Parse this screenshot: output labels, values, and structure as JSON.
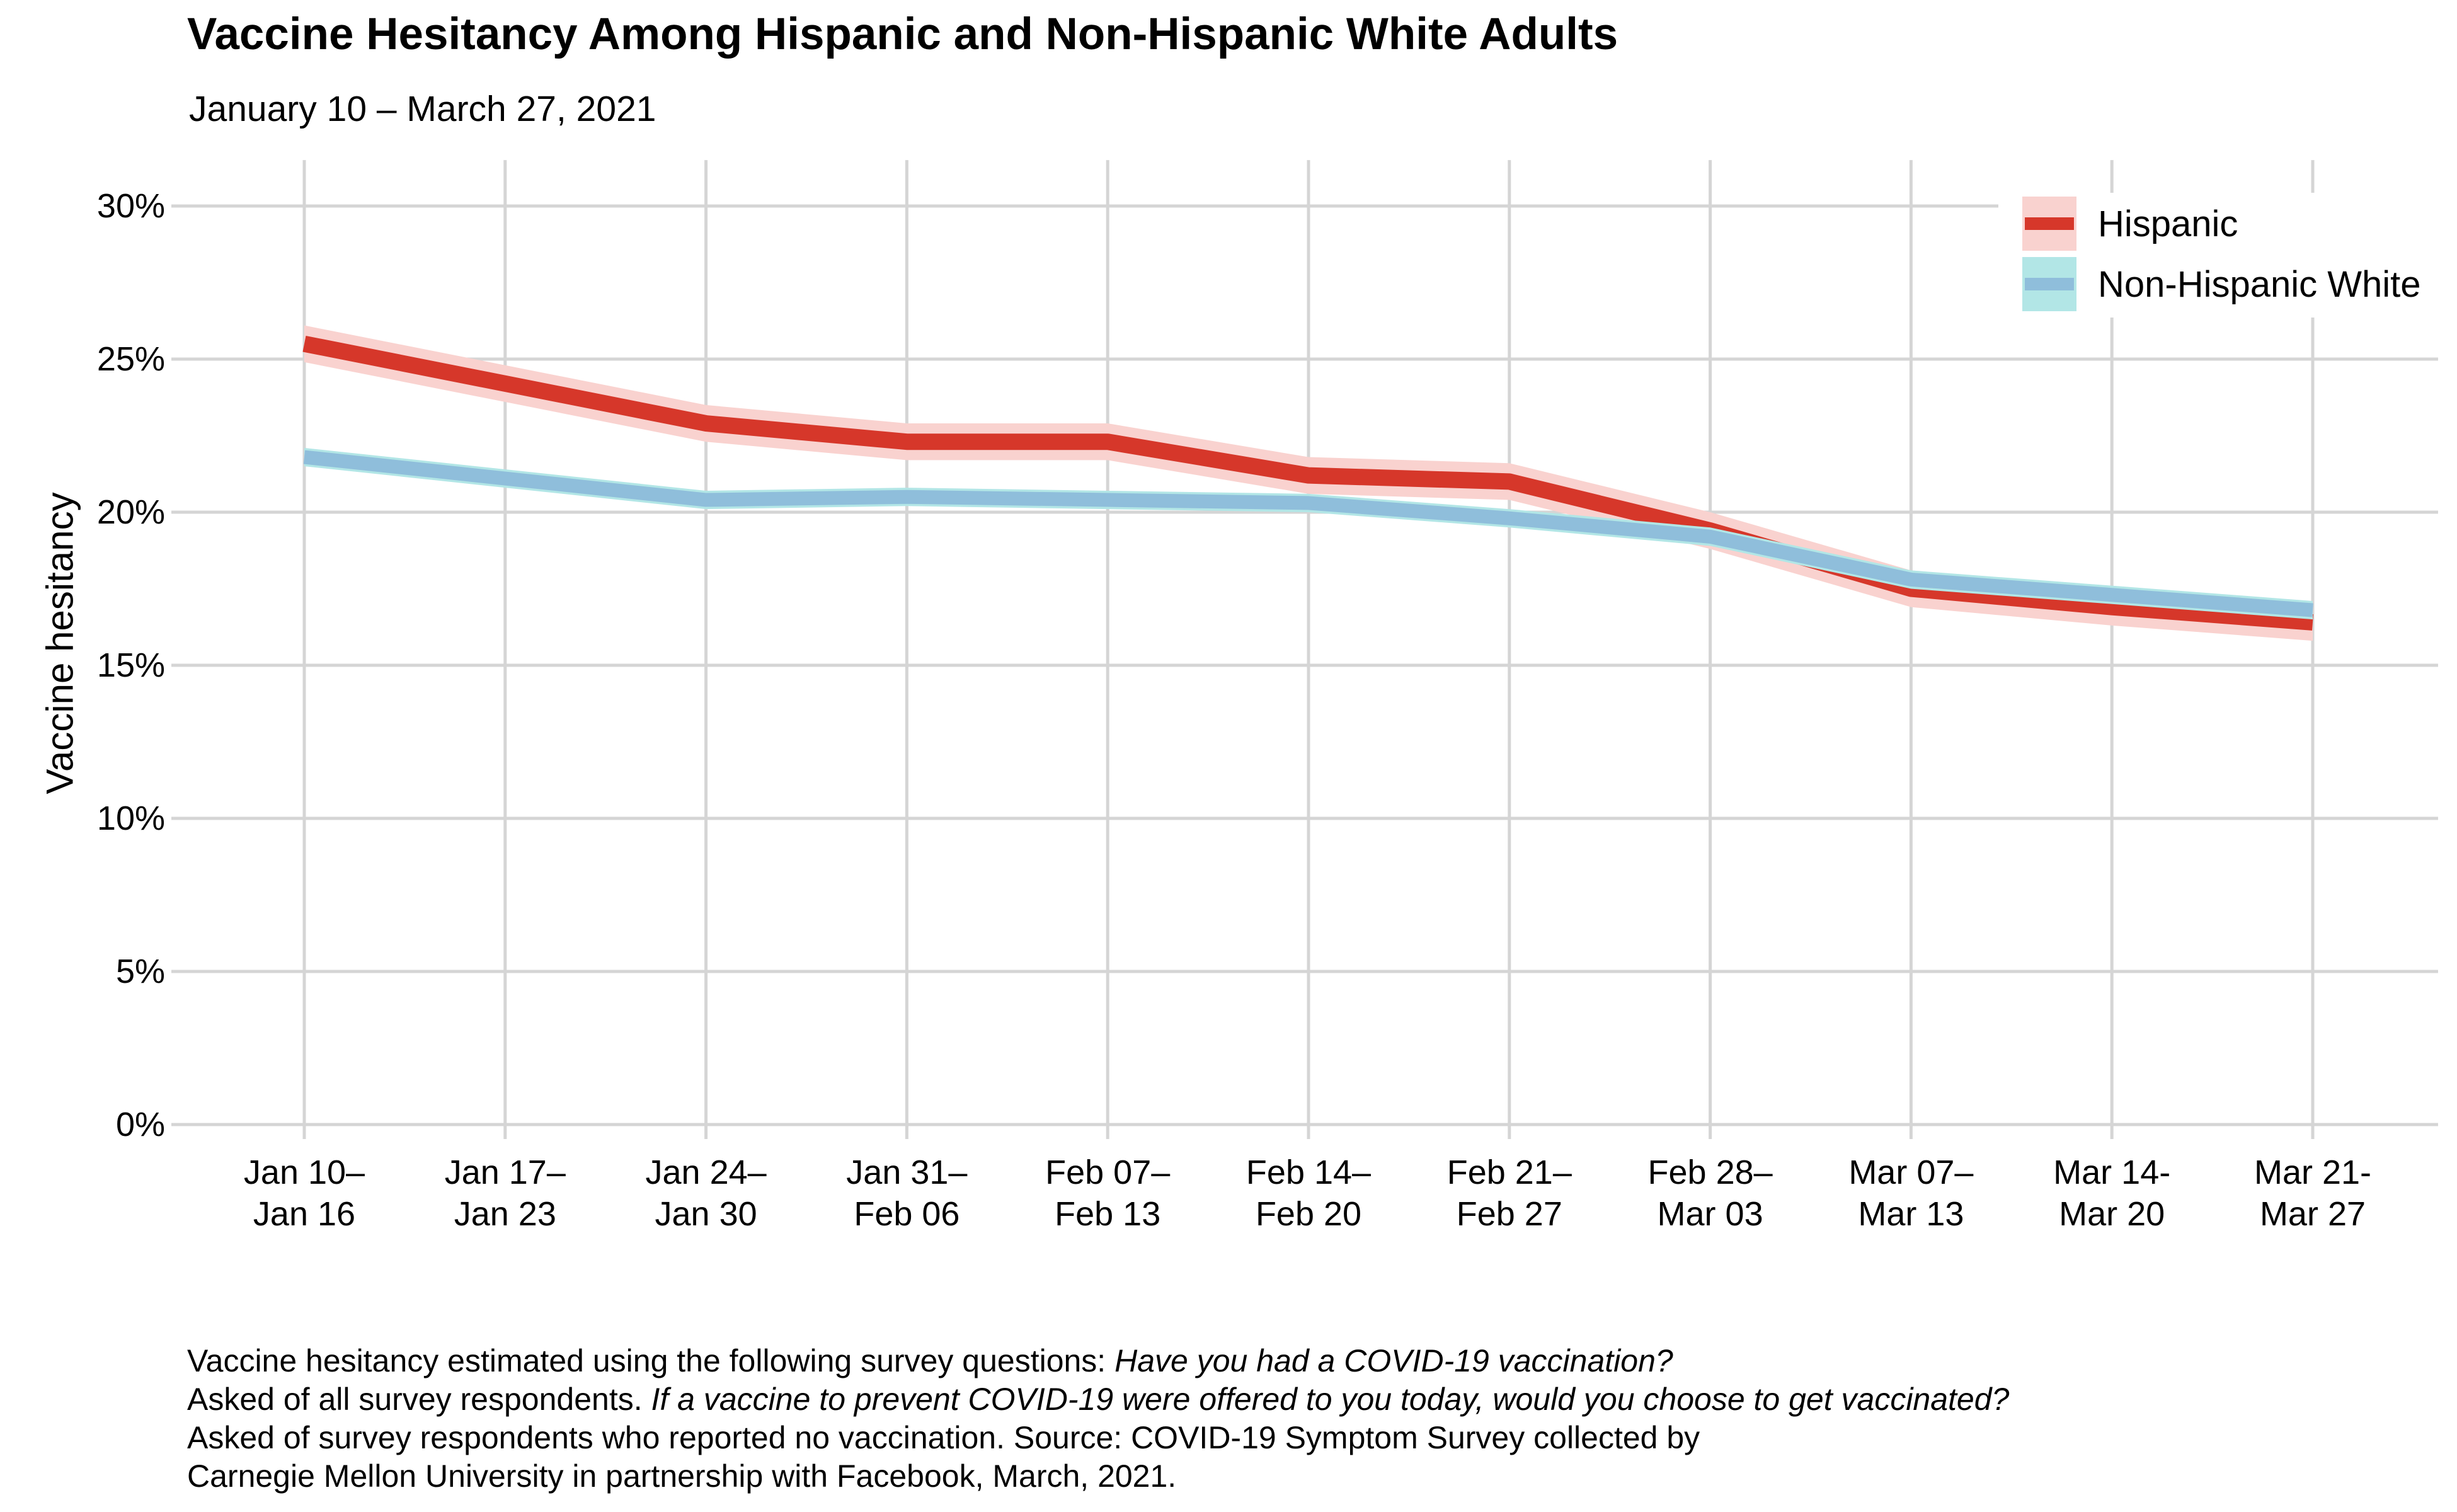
{
  "chart_data": {
    "type": "line",
    "title": "Vaccine Hesitancy Among Hispanic and Non-Hispanic White Adults",
    "subtitle": "January 10 – March 27, 2021",
    "xlabel": "",
    "ylabel": "Vaccine hesitancy",
    "ylim": [
      0,
      31.5
    ],
    "grid": true,
    "legend_position": "top-right-inside",
    "y_ticks_pct": [
      0,
      5,
      10,
      15,
      20,
      25,
      30
    ],
    "y_tick_labels": [
      "0%",
      "5%",
      "10%",
      "15%",
      "20%",
      "25%",
      "30%"
    ],
    "categories": [
      "Jan 10–Jan 16",
      "Jan 17–Jan 23",
      "Jan 24–Jan 30",
      "Jan 31–Feb 06",
      "Feb 07–Feb 13",
      "Feb 14–Feb 20",
      "Feb 21–Feb 27",
      "Feb 28–Mar 03",
      "Mar 07–Mar 13",
      "Mar 14-Mar 20",
      "Mar 21-Mar 27"
    ],
    "x_tick_lines": [
      [
        "Jan 10–",
        "Jan 16"
      ],
      [
        "Jan 17–",
        "Jan 23"
      ],
      [
        "Jan 24–",
        "Jan 30"
      ],
      [
        "Jan 31–",
        "Feb 06"
      ],
      [
        "Feb 07–",
        "Feb 13"
      ],
      [
        "Feb 14–",
        "Feb 20"
      ],
      [
        "Feb 21–",
        "Feb 27"
      ],
      [
        "Feb 28–",
        "Mar 03"
      ],
      [
        "Mar 07–",
        "Mar 13"
      ],
      [
        "Mar 14-",
        "Mar 20"
      ],
      [
        "Mar 21-",
        "Mar 27"
      ]
    ],
    "series": [
      {
        "name": "Hispanic",
        "line_color": "#d6372a",
        "band_color": "#f9d2cf",
        "band_halfwidth_pct": 0.6,
        "values_pct": [
          25.5,
          24.2,
          22.9,
          22.3,
          22.3,
          21.2,
          21.0,
          19.4,
          17.5,
          16.9,
          16.4
        ]
      },
      {
        "name": "Non-Hispanic White",
        "line_color": "#8fbedb",
        "band_color": "#b2e6e6",
        "band_halfwidth_pct": 0.3,
        "values_pct": [
          21.8,
          21.1,
          20.4,
          20.5,
          20.4,
          20.3,
          19.8,
          19.2,
          17.8,
          17.3,
          16.8
        ]
      }
    ],
    "grid_color": "#d5d5d5",
    "background_color": "#ffffff",
    "caption_lines": [
      [
        {
          "text": "Vaccine hesitancy estimated using the following survey questions: ",
          "italic": false
        },
        {
          "text": "Have you had a COVID-19 vaccination?",
          "italic": true
        }
      ],
      [
        {
          "text": "Asked of all survey respondents. ",
          "italic": false
        },
        {
          "text": "If a vaccine to prevent COVID-19 were offered to you today, would you choose to get vaccinated?",
          "italic": true
        }
      ],
      [
        {
          "text": "Asked of survey respondents who reported no vaccination. Source: COVID-19 Symptom Survey collected by",
          "italic": false
        }
      ],
      [
        {
          "text": "Carnegie Mellon University in partnership with Facebook, March, 2021.",
          "italic": false
        }
      ]
    ]
  }
}
